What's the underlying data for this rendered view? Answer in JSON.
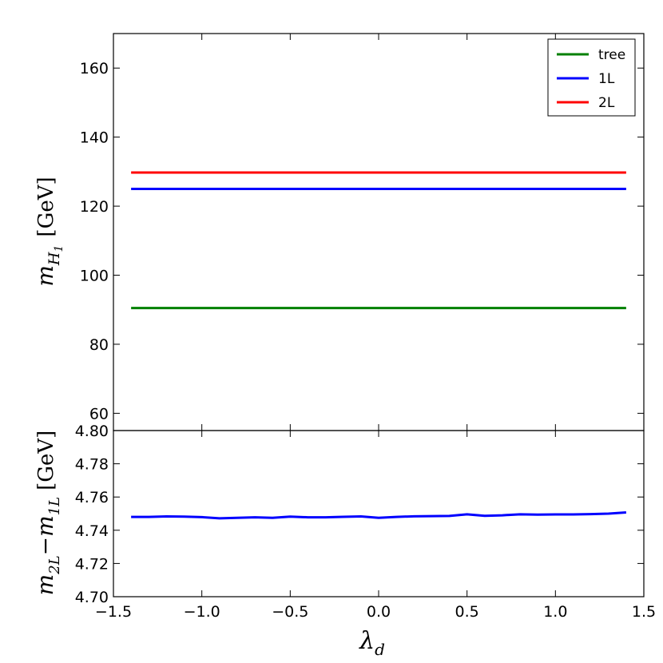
{
  "chart_data": [
    {
      "type": "line",
      "panel": "top",
      "ylabel": "m_{H_1} [GeV]",
      "ylabel_main": "m",
      "ylabel_sub": "H",
      "ylabel_subsub": "1",
      "ylabel_unit": "[GeV]",
      "xlim": [
        -1.5,
        1.5
      ],
      "ylim": [
        55,
        170
      ],
      "yticks": [
        60,
        80,
        100,
        120,
        140,
        160
      ],
      "grid": false,
      "legend_position": "top-right",
      "series": [
        {
          "name": "tree",
          "color": "#008000",
          "x": [
            -1.4,
            1.4
          ],
          "y": [
            90.5,
            90.5
          ]
        },
        {
          "name": "1L",
          "color": "#0000ff",
          "x": [
            -1.4,
            1.4
          ],
          "y": [
            125.0,
            125.0
          ]
        },
        {
          "name": "2L",
          "color": "#ff0000",
          "x": [
            -1.4,
            1.4
          ],
          "y": [
            129.75,
            129.75
          ]
        }
      ]
    },
    {
      "type": "line",
      "panel": "bottom",
      "xlabel": "λ_d",
      "xlabel_main": "λ",
      "xlabel_sub": "d",
      "ylabel": "m_{2L}−m_{1L} [GeV]",
      "ylabel_parts": [
        "m",
        "2L",
        "−",
        "m",
        "1L",
        "[GeV]"
      ],
      "xlim": [
        -1.5,
        1.5
      ],
      "ylim": [
        4.7,
        4.8
      ],
      "xticks": [
        -1.5,
        -1.0,
        -0.5,
        0.0,
        0.5,
        1.0,
        1.5
      ],
      "yticks": [
        4.7,
        4.72,
        4.74,
        4.76,
        4.78,
        4.8
      ],
      "grid": false,
      "series": [
        {
          "color": "#0000ff",
          "x": [
            -1.4,
            -1.3,
            -1.2,
            -1.1,
            -1.0,
            -0.9,
            -0.8,
            -0.7,
            -0.6,
            -0.5,
            -0.4,
            -0.3,
            -0.2,
            -0.1,
            0.0,
            0.1,
            0.2,
            0.3,
            0.4,
            0.5,
            0.6,
            0.7,
            0.8,
            0.9,
            1.0,
            1.1,
            1.2,
            1.3,
            1.4
          ],
          "y": [
            4.748,
            4.748,
            4.7483,
            4.7482,
            4.7479,
            4.7472,
            4.7475,
            4.7478,
            4.7475,
            4.7482,
            4.7478,
            4.7478,
            4.7481,
            4.7483,
            4.7475,
            4.748,
            4.7484,
            4.7485,
            4.7486,
            4.7496,
            4.7487,
            4.749,
            4.7496,
            4.7494,
            4.7495,
            4.7495,
            4.7497,
            4.75,
            4.7507
          ]
        }
      ]
    }
  ],
  "tick_label_text": {
    "top_y": [
      "60",
      "80",
      "100",
      "120",
      "140",
      "160"
    ],
    "bottom_y": [
      "4.70",
      "4.72",
      "4.74",
      "4.76",
      "4.78",
      "4.80"
    ],
    "x": [
      "−1.5",
      "−1.0",
      "−0.5",
      "0.0",
      "0.5",
      "1.0",
      "1.5"
    ]
  }
}
